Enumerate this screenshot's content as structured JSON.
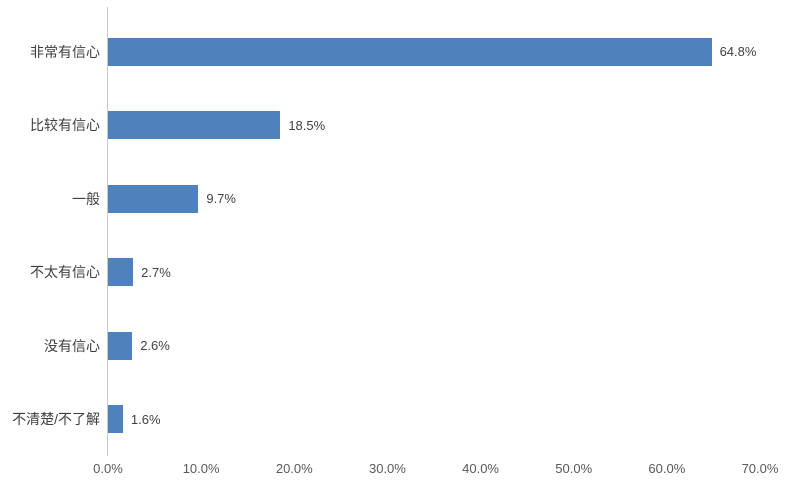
{
  "chart_data": {
    "type": "bar",
    "orientation": "horizontal",
    "title": "",
    "xlabel": "",
    "ylabel": "",
    "categories": [
      "非常有信心",
      "比较有信心",
      "一般",
      "不太有信心",
      "没有信心",
      "不清楚/不了解"
    ],
    "values": [
      64.8,
      18.5,
      9.7,
      2.7,
      2.6,
      1.6
    ],
    "value_labels": [
      "64.8%",
      "18.5%",
      "9.7%",
      "2.7%",
      "2.6%",
      "1.6%"
    ],
    "x_ticks": [
      "0.0%",
      "10.0%",
      "20.0%",
      "30.0%",
      "40.0%",
      "50.0%",
      "60.0%",
      "70.0%"
    ],
    "xlim": [
      0,
      70
    ],
    "grid": false,
    "legend": false,
    "colors": {
      "bar": "#4f81bd",
      "axis_line": "#c9c9c9",
      "tick_label": "#595959",
      "data_label": "#3f3f3f",
      "category_label": "#3f3f3f",
      "background": "#ffffff"
    }
  }
}
